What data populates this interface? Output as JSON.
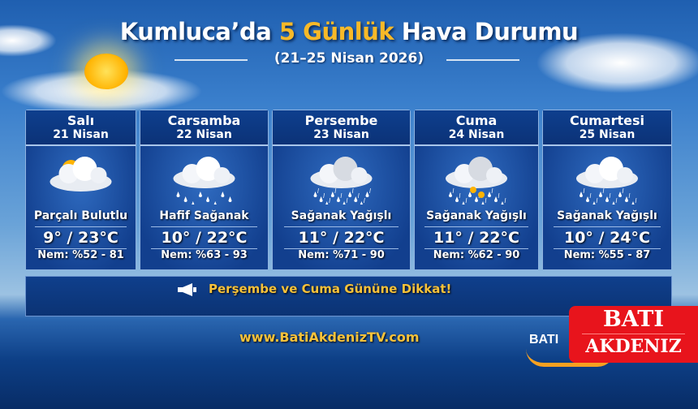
{
  "header": {
    "title_prefix": "Kumluca’da ",
    "title_highlight": "5 Günlük",
    "title_suffix": " Hava Durumu",
    "subtitle": "(21–25 Nisan 2026)"
  },
  "days": [
    {
      "day": "Salı",
      "date": "21 Nisan",
      "icon": "partly-cloudy-icon",
      "condition": "Parçalı Bulutlu",
      "temp": "9° / 23°C",
      "humidity": "Nem: %52 - 81"
    },
    {
      "day": "Carsamba",
      "date": "22 Nisan",
      "icon": "light-rain-icon",
      "condition": "Hafif Sağanak",
      "temp": "10° / 22°C",
      "humidity": "Nem: %63 - 93"
    },
    {
      "day": "Persembe",
      "date": "23 Nisan",
      "icon": "heavy-rain-icon",
      "condition": "Sağanak Yağışlı",
      "temp": "11° / 22°C",
      "humidity": "Nem: %71 - 90"
    },
    {
      "day": "Cuma",
      "date": "24 Nisan",
      "icon": "rain-sun-icon",
      "condition": "Sağanak Yağışlı",
      "temp": "11° / 22°C",
      "humidity": "Nem: %62 - 90"
    },
    {
      "day": "Cumartesi",
      "date": "25 Nisan",
      "icon": "rain-icon",
      "condition": "Sağanak Yağışlı",
      "temp": "10° / 24°C",
      "humidity": "Nem: %55 - 87"
    }
  ],
  "alert": {
    "icon": "megaphone-icon",
    "text": "Perşembe ve Cuma Gününe Dikkat!"
  },
  "footer": {
    "url": "www.BatiAkdenizTV.com",
    "logo_text": "BATI",
    "logo_line1": "BATI",
    "logo_line2": "AKDENIZ"
  },
  "colors": {
    "accent": "#f7c23a",
    "panel": "#0e3f8e",
    "logo_red": "#e8141c"
  }
}
